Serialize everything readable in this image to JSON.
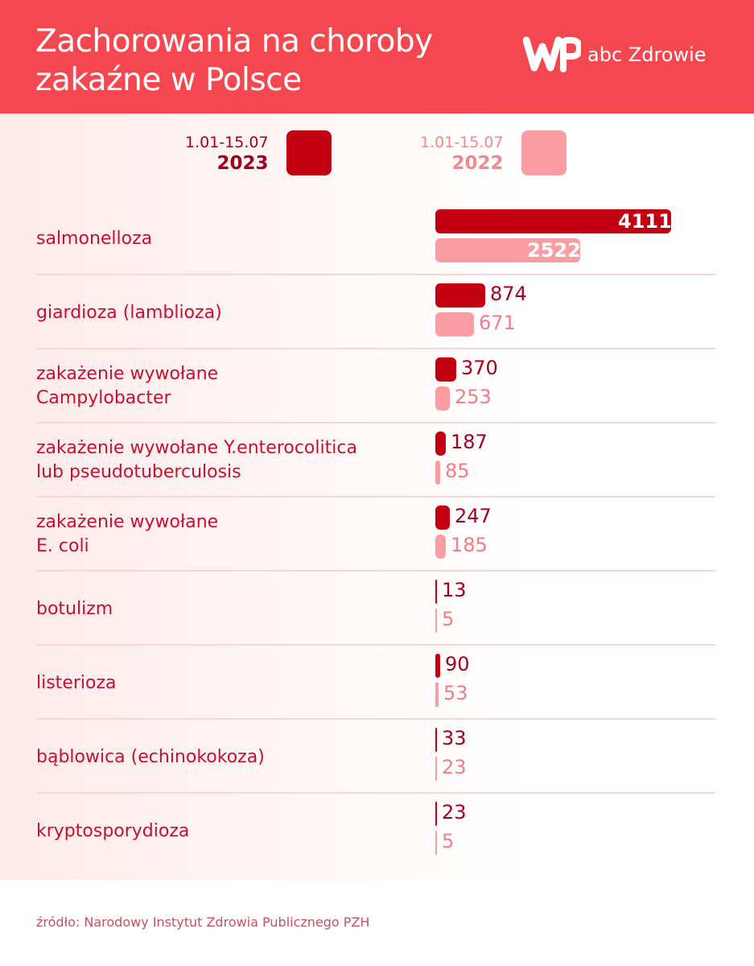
{
  "header": {
    "title_line1": "Zachorowania na choroby",
    "title_line2": "zakaźne w Polsce",
    "logo_icon": "wp-logo-icon",
    "logo_text": "abc Zdrowie"
  },
  "legend": [
    {
      "period": "1.01-15.07",
      "year": "2023",
      "color": "#c20010"
    },
    {
      "period": "1.01-15.07",
      "year": "2022",
      "color": "#fb9ca3"
    }
  ],
  "rows": [
    {
      "label": "salmonelloza",
      "v2023": "4111",
      "v2022": "2522"
    },
    {
      "label": "giardioza (lamblioza)",
      "v2023": "874",
      "v2022": "671"
    },
    {
      "label": "zakażenie wywołane\nCampylobacter",
      "v2023": "370",
      "v2022": "253"
    },
    {
      "label": "zakażenie wywołane Y.enterocolitica\nlub pseudotuberculosis",
      "v2023": "187",
      "v2022": "85"
    },
    {
      "label": "zakażenie wywołane\nE. coli",
      "v2023": "247",
      "v2022": "185"
    },
    {
      "label": "botulizm",
      "v2023": "13",
      "v2022": "5"
    },
    {
      "label": "listerioza",
      "v2023": "90",
      "v2022": "53"
    },
    {
      "label": "bąblowica (echinokokoza)",
      "v2023": "33",
      "v2022": "23"
    },
    {
      "label": "kryptosporydioza",
      "v2023": "23",
      "v2022": "5"
    }
  ],
  "footer": {
    "source": "źródło: Narodowy Instytut Zdrowia Publicznego PZH"
  },
  "chart_data": {
    "type": "bar",
    "orientation": "horizontal",
    "title": "Zachorowania na choroby zakaźne w Polsce",
    "categories": [
      "salmonelloza",
      "giardioza (lamblioza)",
      "zakażenie wywołane Campylobacter",
      "zakażenie wywołane Y.enterocolitica lub pseudotuberculosis",
      "zakażenie wywołane E. coli",
      "botulizm",
      "listerioza",
      "bąblowica (echinokokoza)",
      "kryptosporydioza"
    ],
    "series": [
      {
        "name": "1.01-15.07 2023",
        "color": "#c20010",
        "values": [
          4111,
          874,
          370,
          187,
          247,
          13,
          90,
          33,
          23
        ]
      },
      {
        "name": "1.01-15.07 2022",
        "color": "#fb9ca3",
        "values": [
          2522,
          671,
          253,
          85,
          185,
          5,
          53,
          23,
          5
        ]
      }
    ],
    "xlabel": "",
    "ylabel": "",
    "grid": false,
    "legend_position": "top",
    "source": "źródło: Narodowy Instytut Zdrowia Publicznego PZH"
  }
}
